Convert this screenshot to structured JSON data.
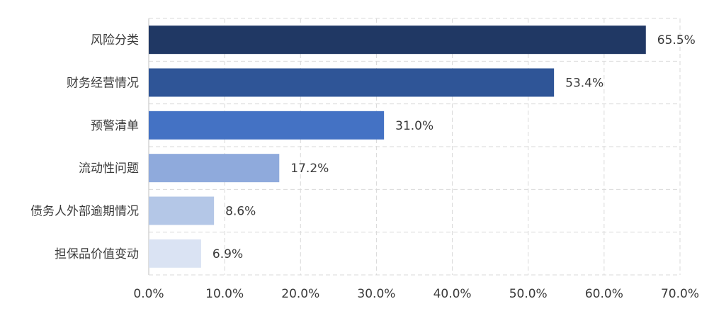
{
  "chart_data": {
    "type": "bar",
    "orientation": "horizontal",
    "categories": [
      "风险分类",
      "财务经营情况",
      "预警清单",
      "流动性问题",
      "债务人外部逾期情况",
      "担保品价值变动"
    ],
    "values": [
      65.5,
      53.4,
      31.0,
      17.2,
      8.6,
      6.9
    ],
    "value_labels": [
      "65.5%",
      "53.4%",
      "31.0%",
      "17.2%",
      "8.6%",
      "6.9%"
    ],
    "bar_colors": [
      "#203864",
      "#2F5597",
      "#4472C4",
      "#8FAADC",
      "#B4C7E7",
      "#DAE3F3"
    ],
    "x_ticks": [
      0,
      10,
      20,
      30,
      40,
      50,
      60,
      70
    ],
    "x_tick_labels": [
      "0.0%",
      "10.0%",
      "20.0%",
      "30.0%",
      "40.0%",
      "50.0%",
      "60.0%",
      "70.0%"
    ],
    "xlim": [
      0,
      70
    ],
    "grid": true,
    "legend": false,
    "title": "",
    "xlabel": "",
    "ylabel": ""
  }
}
